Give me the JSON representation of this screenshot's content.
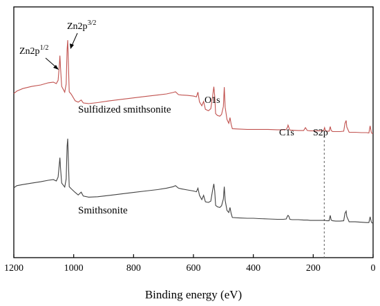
{
  "chart_data": {
    "type": "line",
    "xlabel": "Binding energy (eV)",
    "ylabel": "",
    "xlim": [
      1200,
      0
    ],
    "x_reversed": true,
    "xticks": [
      "1200",
      "1000",
      "800",
      "600",
      "400",
      "200",
      "0"
    ],
    "y_ticks_shown": false,
    "grid": false,
    "series": [
      {
        "name": "Sulfidized smithsonite",
        "color": "#c0504d",
        "x": [
          1200,
          1190,
          1170,
          1140,
          1110,
          1085,
          1068,
          1058,
          1052,
          1048,
          1046,
          1044,
          1040,
          1030,
          1025,
          1022,
          1020,
          1018,
          1015,
          1008,
          995,
          985,
          975,
          968,
          950,
          920,
          880,
          840,
          800,
          760,
          720,
          690,
          668,
          660,
          650,
          640,
          620,
          600,
          590,
          585,
          580,
          572,
          566,
          560,
          550,
          542,
          536,
          532,
          529,
          526,
          520,
          512,
          506,
          500,
          497,
          494,
          488,
          482,
          478,
          474,
          470,
          450,
          420,
          400,
          380,
          350,
          320,
          300,
          290,
          286,
          284,
          281,
          278,
          270,
          250,
          232,
          226,
          220,
          210,
          190,
          170,
          165,
          162,
          160,
          155,
          147,
          143,
          140,
          135,
          125,
          110,
          98,
          94,
          90,
          88,
          80,
          60,
          40,
          22,
          14,
          10,
          6,
          4,
          0
        ],
        "values": [
          45.8,
          46.5,
          47.2,
          47.8,
          48.2,
          48.8,
          49.0,
          48.6,
          49.5,
          53.8,
          56.4,
          53.0,
          47.8,
          46.2,
          48.5,
          58.0,
          60.7,
          55.0,
          46.3,
          45.6,
          43.8,
          43.4,
          44.0,
          43.2,
          43.0,
          43.3,
          43.8,
          44.2,
          44.6,
          45.0,
          45.4,
          45.7,
          46.1,
          46.3,
          45.5,
          45.4,
          45.3,
          45.1,
          44.9,
          46.2,
          43.5,
          42.4,
          43.6,
          41.4,
          41.0,
          41.6,
          45.0,
          47.7,
          45.0,
          40.2,
          39.7,
          39.5,
          40.0,
          42.2,
          47.6,
          42.0,
          38.6,
          37.5,
          39.1,
          37.2,
          36.0,
          35.9,
          35.8,
          35.8,
          35.8,
          35.8,
          35.7,
          35.7,
          35.8,
          36.4,
          37.0,
          36.3,
          35.6,
          35.6,
          35.5,
          35.5,
          36.3,
          35.5,
          35.4,
          35.4,
          35.4,
          35.5,
          36.3,
          35.6,
          35.3,
          35.3,
          36.6,
          35.5,
          35.2,
          35.2,
          35.2,
          35.3,
          37.5,
          38.3,
          36.5,
          35.0,
          35.0,
          34.9,
          34.9,
          34.8,
          36.8,
          35.0,
          34.7,
          34.7
        ]
      },
      {
        "name": "Smithsonite",
        "color": "#404040",
        "x": [
          1200,
          1190,
          1170,
          1140,
          1110,
          1085,
          1068,
          1058,
          1052,
          1048,
          1046,
          1044,
          1040,
          1030,
          1025,
          1022,
          1020,
          1018,
          1015,
          1008,
          995,
          985,
          975,
          968,
          950,
          920,
          880,
          840,
          800,
          760,
          720,
          690,
          668,
          660,
          650,
          640,
          620,
          600,
          590,
          585,
          580,
          572,
          566,
          560,
          550,
          542,
          536,
          532,
          529,
          526,
          520,
          512,
          506,
          500,
          497,
          494,
          488,
          482,
          478,
          474,
          470,
          450,
          420,
          400,
          380,
          350,
          320,
          300,
          290,
          286,
          284,
          281,
          278,
          270,
          250,
          232,
          226,
          220,
          210,
          190,
          170,
          165,
          162,
          160,
          155,
          147,
          143,
          140,
          135,
          125,
          110,
          98,
          94,
          90,
          88,
          80,
          60,
          40,
          22,
          14,
          10,
          6,
          4,
          0
        ],
        "values": [
          19.5,
          20.1,
          20.4,
          20.8,
          21.2,
          21.6,
          21.8,
          21.4,
          22.5,
          26.2,
          27.9,
          25.0,
          20.8,
          19.7,
          22.0,
          31.0,
          33.2,
          27.5,
          19.8,
          19.2,
          18.2,
          17.5,
          18.3,
          17.2,
          16.9,
          17.0,
          17.4,
          17.8,
          18.2,
          18.6,
          19.0,
          19.4,
          19.8,
          20.1,
          19.4,
          19.2,
          18.9,
          18.6,
          18.4,
          19.4,
          17.4,
          16.2,
          17.4,
          15.6,
          15.4,
          15.8,
          18.8,
          20.6,
          18.5,
          14.6,
          14.2,
          14.0,
          14.5,
          16.4,
          19.8,
          16.0,
          13.2,
          12.6,
          14.0,
          12.3,
          11.2,
          11.1,
          11.0,
          11.0,
          10.9,
          10.8,
          10.7,
          10.7,
          10.8,
          11.6,
          11.8,
          11.5,
          10.7,
          10.6,
          10.6,
          10.5,
          10.5,
          10.5,
          10.4,
          10.4,
          10.4,
          10.4,
          10.5,
          10.4,
          10.3,
          10.3,
          11.8,
          10.5,
          10.3,
          10.2,
          10.2,
          10.3,
          12.4,
          13.0,
          11.5,
          10.0,
          10.0,
          9.9,
          9.8,
          9.8,
          11.4,
          10.0,
          9.7,
          9.7
        ]
      }
    ],
    "annotations": {
      "zn2p12": {
        "label": "Zn2p",
        "sup": "1/2",
        "x": 1046
      },
      "zn2p32": {
        "label": "Zn2p",
        "sup": "3/2",
        "x": 1021
      },
      "o1s": {
        "label": "O1s"
      },
      "c1s": {
        "label": "C1s"
      },
      "s2p": {
        "label": "S2p",
        "x": 163
      }
    }
  }
}
